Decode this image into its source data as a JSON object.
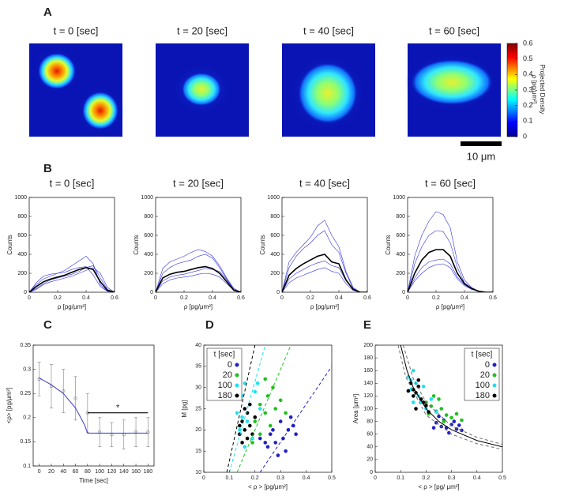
{
  "panel_labels": [
    "A",
    "B",
    "C",
    "D",
    "E"
  ],
  "panel_a": {
    "titles": [
      "t = 0 [sec]",
      "t = 20 [sec]",
      "t = 40 [sec]",
      "t = 60 [sec]"
    ],
    "colorbar": {
      "label": [
        "Projected Density",
        "ρ [pg/μm²]"
      ],
      "ylim": [
        0,
        0.6
      ],
      "yticks": [
        0,
        0.1,
        0.2,
        0.3,
        0.4,
        0.5,
        0.6
      ]
    },
    "scale_bar": "10 μm"
  },
  "chart_data": [
    {
      "type": "line",
      "title": "t = 0 [sec]",
      "xlabel": "ρ [pg/μm²]",
      "ylabel": "Counts",
      "xlim": [
        0,
        0.6
      ],
      "ylim": [
        0,
        1000
      ],
      "xticks": [
        0,
        0.2,
        0.4,
        0.6
      ],
      "yticks": [
        0,
        200,
        400,
        600,
        800,
        1000
      ],
      "x": [
        0,
        0.05,
        0.1,
        0.15,
        0.2,
        0.25,
        0.3,
        0.35,
        0.4,
        0.45,
        0.5,
        0.55,
        0.6
      ],
      "series": [
        {
          "color": "#3030e0",
          "values": [
            0,
            80,
            140,
            170,
            200,
            230,
            280,
            330,
            380,
            300,
            80,
            10,
            0
          ]
        },
        {
          "color": "#3030e0",
          "values": [
            0,
            40,
            90,
            130,
            150,
            170,
            190,
            220,
            260,
            280,
            150,
            30,
            0
          ]
        },
        {
          "color": "#3030e0",
          "values": [
            0,
            100,
            170,
            190,
            200,
            210,
            240,
            260,
            270,
            180,
            60,
            10,
            0
          ]
        },
        {
          "color": "#3030e0",
          "values": [
            0,
            30,
            80,
            110,
            130,
            150,
            170,
            200,
            230,
            260,
            200,
            50,
            0
          ]
        },
        {
          "color": "#000000",
          "values": [
            0,
            60,
            110,
            140,
            160,
            180,
            210,
            240,
            260,
            240,
            110,
            20,
            0
          ]
        }
      ]
    },
    {
      "type": "line",
      "title": "t = 20 [sec]",
      "xlabel": "ρ [pg/μm²]",
      "ylabel": "Counts",
      "xlim": [
        0,
        0.6
      ],
      "ylim": [
        0,
        1000
      ],
      "xticks": [
        0,
        0.2,
        0.4,
        0.6
      ],
      "yticks": [
        0,
        200,
        400,
        600,
        800,
        1000
      ],
      "x": [
        0,
        0.05,
        0.1,
        0.15,
        0.2,
        0.25,
        0.3,
        0.35,
        0.4,
        0.45,
        0.5,
        0.55,
        0.6
      ],
      "series": [
        {
          "color": "#3030e0",
          "values": [
            0,
            200,
            260,
            300,
            320,
            340,
            380,
            400,
            360,
            260,
            140,
            30,
            0
          ]
        },
        {
          "color": "#3030e0",
          "values": [
            0,
            120,
            160,
            180,
            190,
            210,
            230,
            250,
            240,
            220,
            130,
            30,
            0
          ]
        },
        {
          "color": "#3030e0",
          "values": [
            0,
            250,
            320,
            350,
            380,
            420,
            450,
            430,
            380,
            280,
            150,
            40,
            0
          ]
        },
        {
          "color": "#3030e0",
          "values": [
            0,
            90,
            130,
            150,
            160,
            170,
            190,
            200,
            190,
            160,
            90,
            20,
            0
          ]
        },
        {
          "color": "#000000",
          "values": [
            0,
            150,
            190,
            210,
            220,
            240,
            260,
            270,
            250,
            200,
            110,
            20,
            0
          ]
        }
      ]
    },
    {
      "type": "line",
      "title": "t = 40 [sec]",
      "xlabel": "ρ [pg/μm²]",
      "ylabel": "Counts",
      "xlim": [
        0,
        0.6
      ],
      "ylim": [
        0,
        1000
      ],
      "xticks": [
        0,
        0.2,
        0.4,
        0.6
      ],
      "yticks": [
        0,
        200,
        400,
        600,
        800,
        1000
      ],
      "x": [
        0,
        0.05,
        0.1,
        0.15,
        0.2,
        0.25,
        0.3,
        0.35,
        0.4,
        0.45,
        0.5,
        0.55,
        0.6
      ],
      "series": [
        {
          "color": "#3030e0",
          "values": [
            0,
            260,
            380,
            460,
            520,
            600,
            650,
            500,
            420,
            200,
            40,
            0,
            0
          ]
        },
        {
          "color": "#3030e0",
          "values": [
            0,
            140,
            200,
            240,
            280,
            310,
            330,
            280,
            260,
            120,
            30,
            0,
            0
          ]
        },
        {
          "color": "#3030e0",
          "values": [
            0,
            320,
            420,
            500,
            580,
            700,
            760,
            600,
            480,
            220,
            50,
            0,
            0
          ]
        },
        {
          "color": "#3030e0",
          "values": [
            0,
            100,
            150,
            180,
            210,
            240,
            260,
            220,
            200,
            90,
            20,
            0,
            0
          ]
        },
        {
          "color": "#000000",
          "values": [
            0,
            180,
            250,
            300,
            340,
            380,
            400,
            320,
            300,
            130,
            30,
            0,
            0
          ]
        }
      ]
    },
    {
      "type": "line",
      "title": "t = 60 [sec]",
      "xlabel": "ρ [pg/μm²]",
      "ylabel": "Counts",
      "xlim": [
        0,
        0.6
      ],
      "ylim": [
        0,
        1000
      ],
      "xticks": [
        0,
        0.2,
        0.4,
        0.6
      ],
      "yticks": [
        0,
        200,
        400,
        600,
        800,
        1000
      ],
      "x": [
        0,
        0.05,
        0.1,
        0.15,
        0.2,
        0.25,
        0.3,
        0.35,
        0.4,
        0.45,
        0.5,
        0.55,
        0.6
      ],
      "series": [
        {
          "color": "#3030e0",
          "values": [
            0,
            300,
            480,
            600,
            650,
            640,
            520,
            260,
            100,
            40,
            10,
            0,
            0
          ]
        },
        {
          "color": "#3030e0",
          "values": [
            0,
            150,
            260,
            320,
            340,
            350,
            300,
            160,
            80,
            30,
            10,
            0,
            0
          ]
        },
        {
          "color": "#3030e0",
          "values": [
            0,
            380,
            600,
            750,
            850,
            820,
            680,
            320,
            130,
            50,
            10,
            0,
            0
          ]
        },
        {
          "color": "#3030e0",
          "values": [
            0,
            120,
            200,
            260,
            290,
            300,
            260,
            140,
            70,
            30,
            10,
            0,
            0
          ]
        },
        {
          "color": "#000000",
          "values": [
            0,
            200,
            340,
            420,
            450,
            450,
            380,
            200,
            90,
            40,
            10,
            0,
            0
          ]
        }
      ]
    },
    {
      "type": "line",
      "xlabel": "Time [sec]",
      "ylabel": "<ρ> [pg/μm²]",
      "xlim": [
        -10,
        190
      ],
      "ylim": [
        0.1,
        0.35
      ],
      "xticks": [
        0,
        20,
        40,
        60,
        80,
        100,
        120,
        140,
        160,
        180
      ],
      "yticks": [
        0.1,
        0.15,
        0.2,
        0.25,
        0.3,
        0.35
      ],
      "x": [
        0,
        20,
        40,
        60,
        80,
        100,
        120,
        140,
        160,
        180
      ],
      "series": [
        {
          "color": "#808080",
          "mode": "markers",
          "marker": "o",
          "values": [
            0.28,
            0.265,
            0.255,
            0.24,
            0.21,
            0.17,
            0.165,
            0.165,
            0.17,
            0.17
          ],
          "errors": [
            0.035,
            0.045,
            0.045,
            0.045,
            0.04,
            0.03,
            0.025,
            0.03,
            0.03,
            0.03
          ]
        },
        {
          "color": "#3a3acf",
          "mode": "line",
          "x": [
            0,
            20,
            40,
            60,
            70,
            75,
            80,
            180
          ],
          "values": [
            0.282,
            0.268,
            0.25,
            0.22,
            0.197,
            0.185,
            0.168,
            0.168
          ]
        }
      ],
      "bracket": {
        "x": [
          80,
          180
        ],
        "y": 0.21,
        "label": "*"
      }
    },
    {
      "type": "scatter",
      "xlabel": "< ρ > [pg/μm²]",
      "ylabel": "M [pg]",
      "xlim": [
        0,
        0.5
      ],
      "ylim": [
        10,
        40
      ],
      "xticks": [
        0,
        0.1,
        0.2,
        0.3,
        0.4,
        0.5
      ],
      "yticks": [
        10,
        15,
        20,
        25,
        30,
        35,
        40
      ],
      "legend": "upper left",
      "legend_title": "t [sec]",
      "series": [
        {
          "name": "0",
          "color": "#2020c8",
          "x": [
            0.22,
            0.25,
            0.27,
            0.28,
            0.3,
            0.31,
            0.32,
            0.33,
            0.34,
            0.29,
            0.26,
            0.35,
            0.24,
            0.36
          ],
          "values": [
            18,
            16,
            20,
            17,
            22,
            18,
            15,
            20,
            23,
            14,
            19,
            21,
            17,
            19
          ]
        },
        {
          "name": "20",
          "color": "#20c020",
          "x": [
            0.2,
            0.22,
            0.24,
            0.25,
            0.27,
            0.28,
            0.3,
            0.22,
            0.26,
            0.19,
            0.32,
            0.24
          ],
          "values": [
            22,
            26,
            24,
            28,
            30,
            25,
            27,
            19,
            21,
            17,
            24,
            32
          ]
        },
        {
          "name": "100",
          "color": "#20e0f0",
          "x": [
            0.13,
            0.15,
            0.16,
            0.18,
            0.14,
            0.17,
            0.2,
            0.19,
            0.22,
            0.16,
            0.21,
            0.15
          ],
          "values": [
            24,
            28,
            31,
            26,
            20,
            22,
            29,
            18,
            25,
            16,
            31,
            23
          ]
        },
        {
          "name": "180",
          "color": "#000000",
          "x": [
            0.14,
            0.15,
            0.16,
            0.17,
            0.15,
            0.18,
            0.16,
            0.19,
            0.14,
            0.17,
            0.18,
            0.2
          ],
          "values": [
            19,
            22,
            20,
            24,
            17,
            21,
            25,
            19,
            21,
            18,
            26,
            23
          ]
        },
        {
          "color": "#000000",
          "mode": "line",
          "dashed": true,
          "x": [
            0.09,
            0.2
          ],
          "values": [
            10,
            40
          ]
        },
        {
          "color": "#20e0f0",
          "mode": "line",
          "dashed": true,
          "x": [
            0.1,
            0.24
          ],
          "values": [
            10,
            40
          ]
        },
        {
          "color": "#20c020",
          "mode": "line",
          "dashed": true,
          "x": [
            0.13,
            0.34
          ],
          "values": [
            10,
            40
          ]
        },
        {
          "color": "#2020c8",
          "mode": "line",
          "dashed": true,
          "x": [
            0.22,
            0.5
          ],
          "values": [
            10,
            35
          ]
        }
      ]
    },
    {
      "type": "scatter",
      "xlabel": "< ρ > [pg/ μm²]",
      "ylabel": "Area [μm²]",
      "xlim": [
        0,
        0.5
      ],
      "ylim": [
        0,
        200
      ],
      "xticks": [
        0,
        0.1,
        0.2,
        0.3,
        0.4,
        0.5
      ],
      "yticks": [
        0,
        20,
        40,
        60,
        80,
        100,
        120,
        140,
        160,
        180,
        200
      ],
      "legend": "upper right",
      "legend_title": "t [sec]",
      "series": [
        {
          "name": "0",
          "color": "#2020c8",
          "x": [
            0.24,
            0.26,
            0.28,
            0.3,
            0.32,
            0.29,
            0.27,
            0.31,
            0.34,
            0.25,
            0.33,
            0.23
          ],
          "values": [
            78,
            72,
            70,
            75,
            68,
            62,
            82,
            80,
            66,
            88,
            74,
            70
          ]
        },
        {
          "name": "20",
          "color": "#20c020",
          "x": [
            0.2,
            0.22,
            0.24,
            0.26,
            0.28,
            0.3,
            0.32,
            0.25,
            0.21,
            0.27,
            0.34,
            0.23
          ],
          "values": [
            110,
            104,
            96,
            100,
            90,
            86,
            92,
            115,
            92,
            80,
            82,
            120
          ]
        },
        {
          "name": "100",
          "color": "#20e0f0",
          "x": [
            0.13,
            0.14,
            0.15,
            0.16,
            0.17,
            0.18,
            0.19,
            0.2,
            0.22,
            0.15,
            0.24,
            0.14
          ],
          "values": [
            150,
            130,
            160,
            140,
            120,
            110,
            135,
            100,
            115,
            110,
            95,
            145
          ]
        },
        {
          "name": "180",
          "color": "#000000",
          "x": [
            0.14,
            0.15,
            0.16,
            0.17,
            0.18,
            0.15,
            0.19,
            0.2,
            0.16,
            0.21,
            0.17,
            0.13
          ],
          "values": [
            140,
            130,
            125,
            135,
            115,
            120,
            110,
            105,
            100,
            95,
            145,
            128
          ]
        },
        {
          "color": "#000000",
          "mode": "line",
          "x": [
            0.1,
            0.125,
            0.15,
            0.2,
            0.25,
            0.3,
            0.4,
            0.5
          ],
          "values": [
            200,
            160,
            133,
            100,
            80,
            67,
            50,
            40
          ]
        },
        {
          "color": "#707070",
          "mode": "line",
          "dashed": true,
          "x": [
            0.11,
            0.15,
            0.2,
            0.3,
            0.4,
            0.5
          ],
          "values": [
            200,
            147,
            110,
            73,
            55,
            44
          ]
        },
        {
          "color": "#707070",
          "mode": "line",
          "dashed": true,
          "x": [
            0.09,
            0.12,
            0.2,
            0.3,
            0.4,
            0.5
          ],
          "values": [
            200,
            150,
            90,
            60,
            45,
            36
          ]
        }
      ]
    }
  ]
}
